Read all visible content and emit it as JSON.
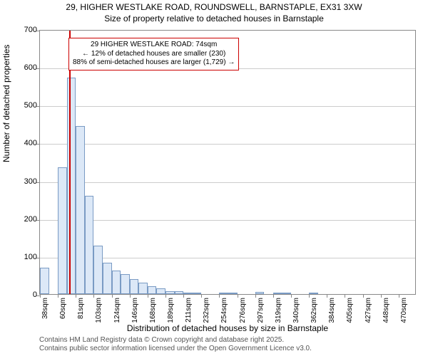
{
  "title": {
    "line1": "29, HIGHER WESTLAKE ROAD, ROUNDSWELL, BARNSTAPLE, EX31 3XW",
    "line2": "Size of property relative to detached houses in Barnstaple"
  },
  "ylabel": "Number of detached properties",
  "xlabel": "Distribution of detached houses by size in Barnstaple",
  "footer": {
    "line1": "Contains HM Land Registry data © Crown copyright and database right 2025.",
    "line2": "Contains public sector information licensed under the Open Government Licence v3.0."
  },
  "chart": {
    "type": "histogram",
    "ylim": [
      0,
      700
    ],
    "ytick_step": 100,
    "yticks": [
      0,
      100,
      200,
      300,
      400,
      500,
      600,
      700
    ],
    "xticks": [
      "38sqm",
      "60sqm",
      "81sqm",
      "103sqm",
      "124sqm",
      "146sqm",
      "168sqm",
      "189sqm",
      "211sqm",
      "232sqm",
      "254sqm",
      "276sqm",
      "297sqm",
      "319sqm",
      "340sqm",
      "362sqm",
      "384sqm",
      "405sqm",
      "427sqm",
      "448sqm",
      "470sqm"
    ],
    "bar_values": [
      70,
      0,
      335,
      572,
      445,
      260,
      128,
      82,
      62,
      52,
      40,
      30,
      20,
      15,
      8,
      8,
      4,
      4,
      0,
      0,
      2,
      4,
      0,
      0,
      5,
      0,
      2,
      2,
      0,
      0,
      2,
      0,
      0,
      0,
      0,
      0,
      0,
      0,
      0,
      0,
      0,
      0
    ],
    "bar_fill": "#dce8f7",
    "bar_stroke": "#7a9bc4",
    "grid_color": "#cccccc",
    "background_color": "#ffffff",
    "marker": {
      "position_index": 3.3,
      "color": "#cc0000"
    },
    "annotation": {
      "line1": "29 HIGHER WESTLAKE ROAD: 74sqm",
      "line2": "← 12% of detached houses are smaller (230)",
      "line3": "88% of semi-detached houses are larger (1,729) →",
      "border_color": "#cc0000",
      "background_color": "#ffffff"
    }
  }
}
